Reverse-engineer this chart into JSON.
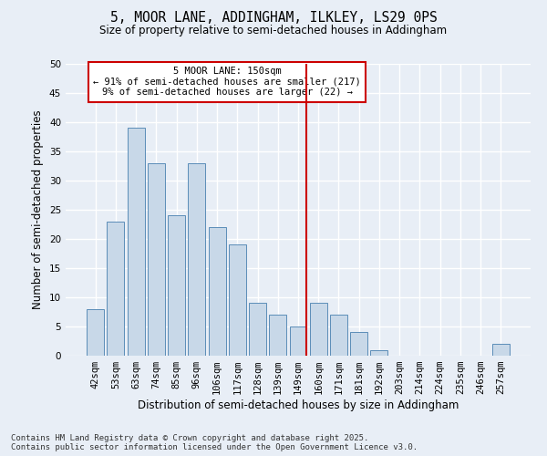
{
  "title": "5, MOOR LANE, ADDINGHAM, ILKLEY, LS29 0PS",
  "subtitle": "Size of property relative to semi-detached houses in Addingham",
  "xlabel": "Distribution of semi-detached houses by size in Addingham",
  "ylabel": "Number of semi-detached properties",
  "categories": [
    "42sqm",
    "53sqm",
    "63sqm",
    "74sqm",
    "85sqm",
    "96sqm",
    "106sqm",
    "117sqm",
    "128sqm",
    "139sqm",
    "149sqm",
    "160sqm",
    "171sqm",
    "181sqm",
    "192sqm",
    "203sqm",
    "214sqm",
    "224sqm",
    "235sqm",
    "246sqm",
    "257sqm"
  ],
  "values": [
    8,
    23,
    39,
    33,
    24,
    33,
    22,
    19,
    9,
    7,
    5,
    9,
    7,
    4,
    1,
    0,
    0,
    0,
    0,
    0,
    2
  ],
  "bar_color": "#c8d8e8",
  "bar_edge_color": "#5b8db8",
  "vline_index": 10,
  "annotation_text": "5 MOOR LANE: 150sqm\n← 91% of semi-detached houses are smaller (217)\n9% of semi-detached houses are larger (22) →",
  "annotation_box_color": "#ffffff",
  "annotation_box_edge_color": "#cc0000",
  "vline_color": "#cc0000",
  "footnote": "Contains HM Land Registry data © Crown copyright and database right 2025.\nContains public sector information licensed under the Open Government Licence v3.0.",
  "ylim": [
    0,
    50
  ],
  "yticks": [
    0,
    5,
    10,
    15,
    20,
    25,
    30,
    35,
    40,
    45,
    50
  ],
  "bg_color": "#e8eef6",
  "plot_bg_color": "#e8eef6",
  "grid_color": "#ffffff",
  "title_fontsize": 10.5,
  "subtitle_fontsize": 8.5,
  "axis_label_fontsize": 8.5,
  "tick_fontsize": 7.5,
  "annotation_fontsize": 7.5,
  "footnote_fontsize": 6.5
}
